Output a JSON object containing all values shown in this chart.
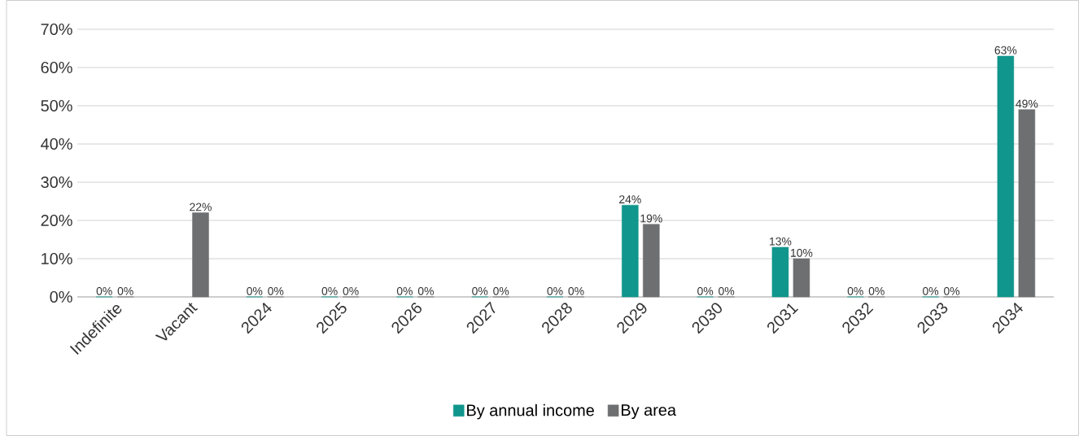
{
  "chart_data": {
    "type": "bar",
    "categories": [
      "Indefinite",
      "Vacant",
      "2024",
      "2025",
      "2026",
      "2027",
      "2028",
      "2029",
      "2030",
      "2031",
      "2032",
      "2033",
      "2034"
    ],
    "series": [
      {
        "name": "By annual income",
        "color": "#10968c",
        "values": [
          0,
          null,
          0,
          0,
          0,
          0,
          0,
          24,
          0,
          13,
          0,
          0,
          63
        ],
        "value_labels": [
          "0%",
          null,
          "0%",
          "0%",
          "0%",
          "0%",
          "0%",
          "24%",
          "0%",
          "13%",
          "0%",
          "0%",
          "63%"
        ]
      },
      {
        "name": "By area",
        "color": "#6d6f71",
        "values": [
          0,
          22,
          0,
          0,
          0,
          0,
          0,
          19,
          0,
          10,
          0,
          0,
          49
        ],
        "value_labels": [
          "0%",
          "22%",
          "0%",
          "0%",
          "0%",
          "0%",
          "0%",
          "19%",
          "0%",
          "10%",
          "0%",
          "0%",
          "49%"
        ]
      }
    ],
    "ylim": [
      0,
      70
    ],
    "yticks": [
      {
        "value": 0,
        "label": "0%"
      },
      {
        "value": 10,
        "label": "10%"
      },
      {
        "value": 20,
        "label": "20%"
      },
      {
        "value": 30,
        "label": "30%"
      },
      {
        "value": 40,
        "label": "40%"
      },
      {
        "value": 50,
        "label": "50%"
      },
      {
        "value": 60,
        "label": "60%"
      },
      {
        "value": 70,
        "label": "70%"
      }
    ],
    "grid": "y",
    "legend": "bottom"
  }
}
